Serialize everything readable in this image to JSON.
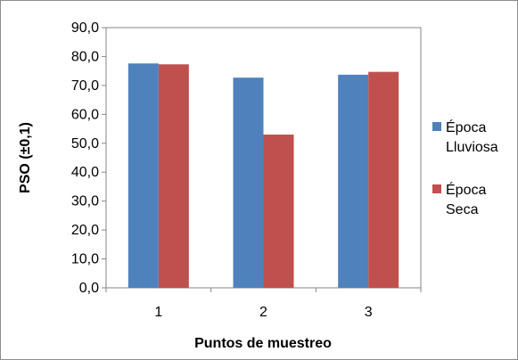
{
  "chart_data": {
    "type": "bar",
    "categories": [
      "1",
      "2",
      "3"
    ],
    "series": [
      {
        "name": "Época Lluviosa",
        "values": [
          77.6,
          72.7,
          73.7
        ],
        "color": "#4f81bd"
      },
      {
        "name": "Época Seca",
        "values": [
          77.3,
          53.0,
          74.7
        ],
        "color": "#c0504d"
      }
    ],
    "xlabel": "Puntos de muestreo",
    "ylabel": "PSO (±0,1)",
    "ylim": [
      0,
      90
    ],
    "yticks": [
      "0,0",
      "10,0",
      "20,0",
      "30,0",
      "40,0",
      "50,0",
      "60,0",
      "70,0",
      "80,0",
      "90,0"
    ],
    "grid": false,
    "legend_position": "right"
  }
}
